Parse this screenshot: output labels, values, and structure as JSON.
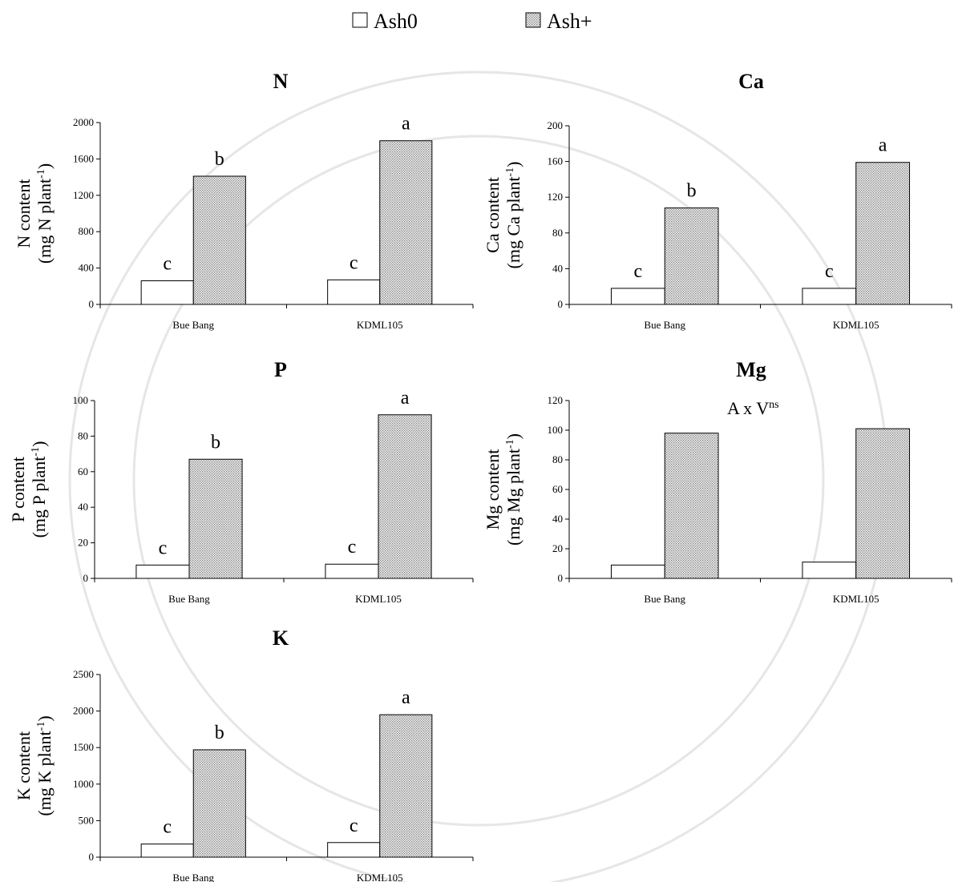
{
  "legend": [
    {
      "name": "Ash0",
      "color": "#ffffff"
    },
    {
      "name": "Ash+",
      "color": "#808080"
    }
  ],
  "chart_data": [
    {
      "type": "bar",
      "title": "N",
      "ylabel": {
        "line1": "N content",
        "line2": "(mg N plant",
        "sup": "-1",
        "end": ")"
      },
      "categories": [
        "Bue Bang",
        "KDML105"
      ],
      "ylim": [
        0,
        2000
      ],
      "yticks": [
        0,
        400,
        800,
        1200,
        1600,
        2000
      ],
      "series": [
        {
          "color": "#ffffff",
          "values": [
            260,
            270
          ],
          "letters": [
            "c",
            "c"
          ]
        },
        {
          "color": "#808080",
          "values": [
            1410,
            1800
          ],
          "letters": [
            "b",
            "a"
          ]
        }
      ]
    },
    {
      "type": "bar",
      "title": "Ca",
      "ylabel": {
        "line1": "Ca content",
        "line2": "(mg Ca plant",
        "sup": "-1",
        "end": ")"
      },
      "categories": [
        "Bue Bang",
        "KDML105"
      ],
      "ylim": [
        0,
        200
      ],
      "yticks": [
        0,
        40,
        80,
        120,
        160,
        200
      ],
      "series": [
        {
          "color": "#ffffff",
          "values": [
            18,
            18
          ],
          "letters": [
            "c",
            "c"
          ]
        },
        {
          "color": "#808080",
          "values": [
            108,
            159
          ],
          "letters": [
            "b",
            "a"
          ]
        }
      ]
    },
    {
      "type": "bar",
      "title": "P",
      "ylabel": {
        "line1": "P content",
        "line2": "(mg P plant",
        "sup": "-1",
        "end": ")"
      },
      "categories": [
        "Bue Bang",
        "KDML105"
      ],
      "ylim": [
        0,
        100
      ],
      "yticks": [
        0,
        20,
        40,
        60,
        80,
        100
      ],
      "series": [
        {
          "color": "#ffffff",
          "values": [
            7.5,
            8
          ],
          "letters": [
            "c",
            "c"
          ]
        },
        {
          "color": "#808080",
          "values": [
            67,
            92
          ],
          "letters": [
            "b",
            "a"
          ]
        }
      ]
    },
    {
      "type": "bar",
      "title": "Mg",
      "ylabel": {
        "line1": "Mg content",
        "line2": "(mg Mg plant",
        "sup": "-1",
        "end": ")"
      },
      "annotation": {
        "text": "A x V",
        "sup": "ns"
      },
      "categories": [
        "Bue Bang",
        "KDML105"
      ],
      "ylim": [
        0,
        120
      ],
      "yticks": [
        0,
        20,
        40,
        60,
        80,
        100,
        120
      ],
      "series": [
        {
          "color": "#ffffff",
          "values": [
            9,
            11
          ]
        },
        {
          "color": "#808080",
          "values": [
            98,
            101
          ]
        }
      ]
    },
    {
      "type": "bar",
      "title": "K",
      "ylabel": {
        "line1": "K content",
        "line2": "(mg K plant",
        "sup": "-1",
        "end": ")"
      },
      "categories": [
        "Bue Bang",
        "KDML105"
      ],
      "ylim": [
        0,
        2500
      ],
      "yticks": [
        0,
        500,
        1000,
        1500,
        2000,
        2500
      ],
      "series": [
        {
          "color": "#ffffff",
          "values": [
            180,
            200
          ],
          "letters": [
            "c",
            "c"
          ]
        },
        {
          "color": "#808080",
          "values": [
            1470,
            1950
          ],
          "letters": [
            "b",
            "a"
          ]
        }
      ]
    }
  ]
}
